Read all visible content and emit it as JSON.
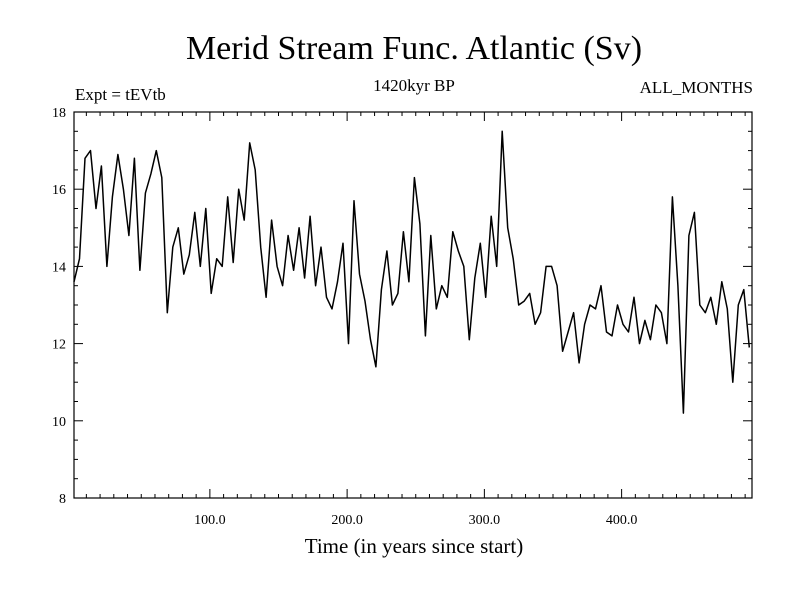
{
  "chart_data": {
    "type": "line",
    "title": "Merid Stream Func. Atlantic (Sv)",
    "subtitle": "1420kyr BP",
    "experiment_label": "Expt = tEVtb",
    "period_label": "ALL_MONTHS",
    "xlabel": "Time (in years since start)",
    "ylabel": "",
    "xlim": [
      1,
      495
    ],
    "ylim": [
      8,
      18
    ],
    "xticks": [
      100,
      200,
      300,
      400
    ],
    "xtick_labels": [
      "100.0",
      "200.0",
      "300.0",
      "400.0"
    ],
    "yticks": [
      8,
      10,
      12,
      14,
      16,
      18
    ],
    "ytick_labels": [
      "8",
      "10",
      "12",
      "14",
      "16",
      "18"
    ],
    "series": [
      {
        "name": "Merid Stream Func. Atlantic",
        "x_start": 1,
        "x_step": 4,
        "values": [
          13.6,
          14.2,
          16.8,
          17.0,
          15.5,
          16.6,
          14.0,
          15.8,
          16.9,
          16.0,
          14.8,
          16.8,
          13.9,
          15.9,
          16.4,
          17.0,
          16.3,
          12.8,
          14.5,
          15.0,
          13.8,
          14.3,
          15.4,
          14.0,
          15.5,
          13.3,
          14.2,
          14.0,
          15.8,
          14.1,
          16.0,
          15.2,
          17.2,
          16.5,
          14.5,
          13.2,
          15.2,
          14.0,
          13.5,
          14.8,
          13.9,
          15.0,
          13.7,
          15.3,
          13.5,
          14.5,
          13.2,
          12.9,
          13.6,
          14.6,
          12.0,
          15.7,
          13.8,
          13.1,
          12.1,
          11.4,
          13.4,
          14.4,
          13.0,
          13.3,
          14.9,
          13.6,
          16.3,
          15.1,
          12.2,
          14.8,
          12.9,
          13.5,
          13.2,
          14.9,
          14.4,
          14.0,
          12.1,
          13.7,
          14.6,
          13.2,
          15.3,
          14.0,
          17.5,
          15.0,
          14.2,
          13.0,
          13.1,
          13.3,
          12.5,
          12.8,
          14.0,
          14.0,
          13.5,
          11.8,
          12.3,
          12.8,
          11.5,
          12.5,
          13.0,
          12.9,
          13.5,
          12.3,
          12.2,
          13.0,
          12.5,
          12.3,
          13.2,
          12.0,
          12.6,
          12.1,
          13.0,
          12.8,
          12.0,
          15.8,
          13.5,
          10.2,
          14.8,
          15.4,
          13.0,
          12.8,
          13.2,
          12.5,
          13.6,
          12.9,
          11.0,
          13.0,
          13.4,
          11.9
        ]
      }
    ]
  }
}
